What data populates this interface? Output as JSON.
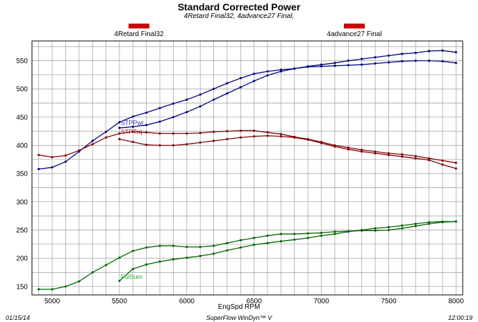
{
  "chart_data": {
    "type": "line",
    "title": "Standard Corrected Power",
    "subtitle": "4Retard Final32, 4advance27 Final,",
    "xlabel": "EngSpd RPM",
    "ylabel": "",
    "xlim": [
      4850,
      8050
    ],
    "ylim": [
      135,
      585
    ],
    "x_ticks": [
      5000,
      5500,
      6000,
      6500,
      7000,
      7500,
      8000
    ],
    "y_ticks": [
      150,
      200,
      250,
      300,
      350,
      400,
      450,
      500,
      550
    ],
    "grid": true,
    "legend": [
      {
        "label": "4Retard Final32",
        "color": "#cc0000"
      },
      {
        "label": "4advance27 Final",
        "color": "#cc0000"
      }
    ],
    "series_labels": [
      {
        "text": "STPPwr",
        "x": 5510,
        "y": 436,
        "color": "#3333aa"
      },
      {
        "text": "STPTrq",
        "x": 5510,
        "y": 420,
        "color": "#aa2222"
      },
      {
        "text": "FulSum",
        "x": 5510,
        "y": 163,
        "color": "#22aa22"
      }
    ],
    "series": [
      {
        "run": "4advance27 Final",
        "quantity": "STPPwr",
        "color": "#000080",
        "x": [
          4900,
          5000,
          5100,
          5200,
          5300,
          5400,
          5500,
          5600,
          5700,
          5800,
          5900,
          6000,
          6100,
          6200,
          6300,
          6400,
          6500,
          6600,
          6700,
          6800,
          6900,
          7000,
          7100,
          7200,
          7300,
          7400,
          7500,
          7600,
          7700,
          7800,
          7900,
          8000
        ],
        "values": [
          358,
          361,
          371,
          389,
          408,
          424,
          441,
          451,
          458,
          466,
          474,
          481,
          490,
          500,
          510,
          519,
          527,
          531,
          534,
          536,
          539,
          540,
          541,
          542,
          543,
          545,
          547,
          549,
          550,
          550,
          549,
          546
        ]
      },
      {
        "run": "4Retard Final32",
        "quantity": "STPPwr",
        "color": "#000080",
        "x": [
          5500,
          5600,
          5700,
          5800,
          5900,
          6000,
          6100,
          6200,
          6300,
          6400,
          6500,
          6600,
          6700,
          6800,
          6900,
          7000,
          7100,
          7200,
          7300,
          7400,
          7500,
          7600,
          7700,
          7800,
          7900,
          8000
        ],
        "values": [
          431,
          433,
          436,
          442,
          450,
          459,
          469,
          481,
          492,
          503,
          514,
          524,
          531,
          536,
          540,
          543,
          546,
          550,
          553,
          556,
          559,
          562,
          564,
          567,
          568,
          565
        ]
      },
      {
        "run": "4advance27 Final",
        "quantity": "STPTrq",
        "color": "#800000",
        "x": [
          4900,
          5000,
          5100,
          5200,
          5300,
          5400,
          5500,
          5600,
          5700,
          5800,
          5900,
          6000,
          6100,
          6200,
          6300,
          6400,
          6500,
          6600,
          6700,
          6800,
          6900,
          7000,
          7100,
          7200,
          7300,
          7400,
          7500,
          7600,
          7700,
          7800,
          7900,
          8000
        ],
        "values": [
          383,
          379,
          382,
          391,
          402,
          414,
          421,
          424,
          423,
          421,
          421,
          421,
          422,
          424,
          425,
          426,
          426,
          423,
          420,
          415,
          411,
          406,
          400,
          396,
          392,
          389,
          386,
          384,
          381,
          377,
          373,
          369
        ]
      },
      {
        "run": "4Retard Final32",
        "quantity": "STPTrq",
        "color": "#800000",
        "x": [
          5500,
          5600,
          5700,
          5800,
          5900,
          6000,
          6100,
          6200,
          6300,
          6400,
          6500,
          6600,
          6700,
          6800,
          6900,
          7000,
          7100,
          7200,
          7300,
          7400,
          7500,
          7600,
          7700,
          7800,
          7900,
          8000
        ],
        "values": [
          411,
          406,
          401,
          400,
          400,
          402,
          405,
          408,
          411,
          414,
          416,
          417,
          416,
          414,
          410,
          404,
          398,
          393,
          389,
          386,
          383,
          380,
          377,
          374,
          366,
          359
        ]
      },
      {
        "run": "4advance27 Final",
        "quantity": "FulSum",
        "color": "#006400",
        "x": [
          4900,
          5000,
          5100,
          5200,
          5300,
          5400,
          5500,
          5600,
          5700,
          5800,
          5900,
          6000,
          6100,
          6200,
          6300,
          6400,
          6500,
          6600,
          6700,
          6800,
          6900,
          7000,
          7100,
          7200,
          7300,
          7400,
          7500,
          7600,
          7700,
          7800,
          7900,
          8000
        ],
        "values": [
          145,
          145,
          150,
          159,
          175,
          188,
          201,
          213,
          219,
          222,
          222,
          220,
          220,
          222,
          227,
          232,
          236,
          240,
          243,
          243,
          244,
          245,
          247,
          248,
          249,
          249,
          250,
          253,
          257,
          261,
          264,
          265
        ]
      },
      {
        "run": "4Retard Final32",
        "quantity": "FulSum",
        "color": "#006400",
        "x": [
          5500,
          5600,
          5700,
          5800,
          5900,
          6000,
          6100,
          6200,
          6300,
          6400,
          6500,
          6600,
          6700,
          6800,
          6900,
          7000,
          7100,
          7200,
          7300,
          7400,
          7500,
          7600,
          7700,
          7800,
          7900,
          8000
        ],
        "values": [
          160,
          181,
          189,
          194,
          198,
          201,
          204,
          208,
          214,
          219,
          224,
          227,
          230,
          233,
          236,
          240,
          243,
          247,
          250,
          253,
          255,
          258,
          261,
          264,
          265,
          265
        ]
      }
    ]
  },
  "footer": {
    "date": "01/15/14",
    "software": "SuperFlow WinDyn™ V",
    "time": "12:00:19"
  }
}
